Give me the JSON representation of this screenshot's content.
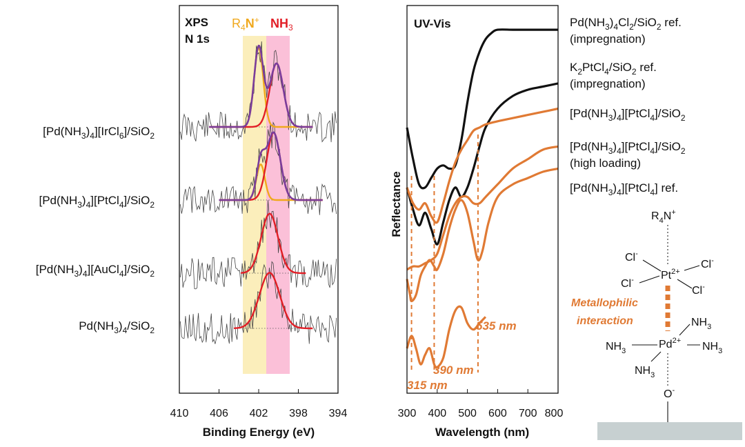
{
  "chart_data": [
    {
      "type": "line",
      "title": "XPS N 1s",
      "title_line1": "XPS",
      "title_line2": "N 1s",
      "legend": {
        "r4n_label_main": "R",
        "r4n_label_sub": "4",
        "r4n_label_end": "N",
        "r4n_label_sup": "+",
        "nh3_label_main": "NH",
        "nh3_label_sub": "3",
        "r4n_color": "#f0a81c",
        "nh3_color": "#e21e26"
      },
      "xlabel": "Binding Energy (eV)",
      "xlim": [
        410,
        394
      ],
      "xticks": [
        "410",
        "406",
        "402",
        "398",
        "394"
      ],
      "bands": [
        {
          "name": "R4N+",
          "range_eV": [
            403.5,
            401.5
          ],
          "color": "#fbeebb"
        },
        {
          "name": "NH3",
          "range_eV": [
            401.5,
            399.5
          ],
          "color": "#fbc0d8"
        }
      ],
      "series": [
        {
          "name": "[Pd(NH3)4][IrCl6]/SiO2",
          "label": {
            "a": "[Pd(NH",
            "s1": "3",
            "b": ")",
            "s2": "4",
            "c": "][IrCl",
            "s3": "6",
            "d": "]/SiO",
            "s4": "2"
          },
          "components": [
            {
              "name": "R4N+",
              "center_eV": 402.0,
              "fwhm_eV": 1.1,
              "amplitude": 1.0,
              "color": "#f0a81c"
            },
            {
              "name": "NH3",
              "center_eV": 400.2,
              "fwhm_eV": 1.6,
              "amplitude": 0.8,
              "color": "#e21e26"
            }
          ],
          "envelope_color": "#7a3d9c",
          "fit_range_eV": [
            407.0,
            396.5
          ]
        },
        {
          "name": "[Pd(NH3)4][PtCl4]/SiO2",
          "label": {
            "a": "[Pd(NH",
            "s1": "3",
            "b": ")",
            "s2": "4",
            "c": "][PtCl",
            "s3": "4",
            "d": "]/SiO",
            "s4": "2"
          },
          "components": [
            {
              "name": "R4N+",
              "center_eV": 401.8,
              "fwhm_eV": 1.0,
              "amplitude": 0.45,
              "color": "#f0a81c"
            },
            {
              "name": "NH3",
              "center_eV": 400.5,
              "fwhm_eV": 1.6,
              "amplitude": 0.85,
              "color": "#e21e26"
            }
          ],
          "envelope_color": "#7a3d9c",
          "fit_range_eV": [
            406.0,
            395.5
          ]
        },
        {
          "name": "[Pd(NH3)4][AuCl4]/SiO2",
          "label": {
            "a": "[Pd(NH",
            "s1": "3",
            "b": ")",
            "s2": "4",
            "c": "][AuCl",
            "s3": "4",
            "d": "]/SiO",
            "s4": "2"
          },
          "components": [
            {
              "name": "NH3",
              "center_eV": 400.9,
              "fwhm_eV": 2.0,
              "amplitude": 0.75,
              "color": "#e21e26"
            }
          ],
          "envelope_color": "#e21e26",
          "fit_range_eV": [
            403.8,
            397.2
          ]
        },
        {
          "name": "Pd(NH3)4/SiO2",
          "label": {
            "a": "Pd(NH",
            "s1": "3",
            "b": ")",
            "s2": "4",
            "c": "/SiO",
            "s3": "2",
            "d": "",
            "s4": ""
          },
          "components": [
            {
              "name": "NH3",
              "center_eV": 400.9,
              "fwhm_eV": 2.4,
              "amplitude": 0.7,
              "color": "#e21e26"
            }
          ],
          "envelope_color": "#e21e26",
          "fit_range_eV": [
            404.5,
            396.5
          ]
        }
      ]
    },
    {
      "type": "line",
      "title": "UV-Vis",
      "xlabel": "Wavelength (nm)",
      "ylabel": "Reflectance",
      "xlim": [
        300,
        800
      ],
      "xticks": [
        "300",
        "400",
        "500",
        "600",
        "700",
        "800"
      ],
      "series": [
        {
          "name": "Pd(NH3)4Cl2/SiO2 ref. (impregnation)",
          "color": "#111111",
          "x": [
            300,
            320,
            340,
            360,
            380,
            400,
            420,
            440,
            460,
            480,
            500,
            520,
            540,
            560,
            580,
            600,
            650,
            700,
            750,
            800
          ],
          "y": [
            0.62,
            0.52,
            0.44,
            0.43,
            0.46,
            0.49,
            0.5,
            0.49,
            0.5,
            0.58,
            0.7,
            0.8,
            0.86,
            0.9,
            0.92,
            0.93,
            0.93,
            0.93,
            0.93,
            0.93
          ]
        },
        {
          "name": "K2PtCl4/SiO2 ref. (impregnation)",
          "color": "#111111",
          "x": [
            300,
            320,
            340,
            360,
            380,
            400,
            420,
            440,
            460,
            480,
            500,
            520,
            540,
            560,
            600,
            650,
            700,
            750,
            800
          ],
          "y": [
            0.43,
            0.36,
            0.31,
            0.35,
            0.3,
            0.25,
            0.32,
            0.39,
            0.43,
            0.4,
            0.43,
            0.49,
            0.56,
            0.62,
            0.68,
            0.72,
            0.74,
            0.75,
            0.76
          ]
        },
        {
          "name": "[Pd(NH3)4][PtCl4]/SiO2",
          "color": "#e07a34",
          "x": [
            300,
            320,
            340,
            360,
            380,
            400,
            420,
            440,
            460,
            480,
            500,
            520,
            540,
            560,
            600,
            650,
            700,
            750,
            800
          ],
          "y": [
            0.43,
            0.38,
            0.36,
            0.38,
            0.34,
            0.32,
            0.38,
            0.45,
            0.51,
            0.55,
            0.58,
            0.61,
            0.62,
            0.63,
            0.64,
            0.65,
            0.66,
            0.67,
            0.68
          ]
        },
        {
          "name": "[Pd(NH3)4][PtCl4]/SiO2 (high loading)",
          "color": "#e07a34",
          "x": [
            300,
            320,
            340,
            360,
            380,
            400,
            420,
            440,
            460,
            480,
            500,
            520,
            540,
            560,
            600,
            650,
            700,
            750,
            800
          ],
          "y": [
            0.17,
            0.18,
            0.18,
            0.19,
            0.2,
            0.22,
            0.28,
            0.34,
            0.38,
            0.4,
            0.4,
            0.38,
            0.38,
            0.4,
            0.44,
            0.49,
            0.52,
            0.55,
            0.56
          ]
        },
        {
          "name": "[Pd(NH3)4][PtCl4] ref.",
          "color": "#e07a34",
          "x": [
            300,
            310,
            315,
            330,
            345,
            360,
            375,
            390,
            400,
            420,
            440,
            460,
            480,
            500,
            520,
            535,
            550,
            570,
            600,
            650,
            700,
            750,
            800
          ],
          "y": [
            0.14,
            0.09,
            0.07,
            0.09,
            0.15,
            0.18,
            0.2,
            0.18,
            0.17,
            0.22,
            0.3,
            0.36,
            0.39,
            0.35,
            0.26,
            0.2,
            0.23,
            0.32,
            0.4,
            0.44,
            0.46,
            0.48,
            0.49
          ]
        },
        {
          "name": "[Pd(NH3)4][PtCl4] ref. (lower)",
          "color": "#e07a34",
          "x": [
            300,
            315,
            330,
            345,
            360,
            375,
            390,
            400,
            420,
            440,
            460,
            480,
            500,
            520,
            540,
            560
          ],
          "y": [
            -0.08,
            -0.04,
            -0.08,
            -0.13,
            -0.1,
            -0.08,
            -0.13,
            -0.14,
            -0.11,
            -0.02,
            0.04,
            0.05,
            0.0,
            -0.02,
            0.0,
            0.02
          ]
        }
      ],
      "annotations": [
        {
          "text": "315 nm",
          "x_nm": 315
        },
        {
          "text": "390 nm",
          "x_nm": 390
        },
        {
          "text": "535 nm",
          "x_nm": 535
        }
      ],
      "legend_entries": [
        {
          "l1_a": "Pd(NH",
          "l1_s1": "3",
          "l1_b": ")",
          "l1_s2": "4",
          "l1_c": "Cl",
          "l1_s3": "2",
          "l1_d": "/SiO",
          "l1_s4": "2",
          "l1_e": " ref.",
          "l2": "(impregnation)"
        },
        {
          "l1_a": "K",
          "l1_s1": "2",
          "l1_b": "PtCl",
          "l1_s2": "4",
          "l1_c": "/SiO",
          "l1_s3": "2",
          "l1_d": " ref.",
          "l1_s4": "",
          "l1_e": "",
          "l2": "(impregnation)"
        },
        {
          "l1_a": "[Pd(NH",
          "l1_s1": "3",
          "l1_b": ")",
          "l1_s2": "4",
          "l1_c": "][PtCl",
          "l1_s3": "4",
          "l1_d": "]/SiO",
          "l1_s4": "2",
          "l1_e": "",
          "l2": ""
        },
        {
          "l1_a": "[Pd(NH",
          "l1_s1": "3",
          "l1_b": ")",
          "l1_s2": "4",
          "l1_c": "][PtCl",
          "l1_s3": "4",
          "l1_d": "]/SiO",
          "l1_s4": "2",
          "l1_e": "",
          "l2": "(high loading)"
        },
        {
          "l1_a": "[Pd(NH",
          "l1_s1": "3",
          "l1_b": ")",
          "l1_s2": "4",
          "l1_c": "][PtCl",
          "l1_s3": "4",
          "l1_d": "] ref.",
          "l1_s4": "",
          "l1_e": "",
          "l2": ""
        }
      ]
    }
  ],
  "scheme": {
    "r4n": {
      "a": "R",
      "s": "4",
      "b": "N",
      "sup": "+"
    },
    "cl_labels": [
      "Cl",
      "Cl",
      "Cl",
      "Cl"
    ],
    "cl_sup": "-",
    "pt": {
      "a": "Pt",
      "sup": "2+"
    },
    "pd": {
      "a": "Pd",
      "sup": "2+"
    },
    "nh3": {
      "a": "NH",
      "s": "3"
    },
    "o": {
      "a": "O",
      "sup": "-"
    },
    "interaction_line1": "Metallophilic",
    "interaction_line2": "interaction",
    "accent_color": "#e07a34",
    "support_color": "#c7d0d1"
  }
}
